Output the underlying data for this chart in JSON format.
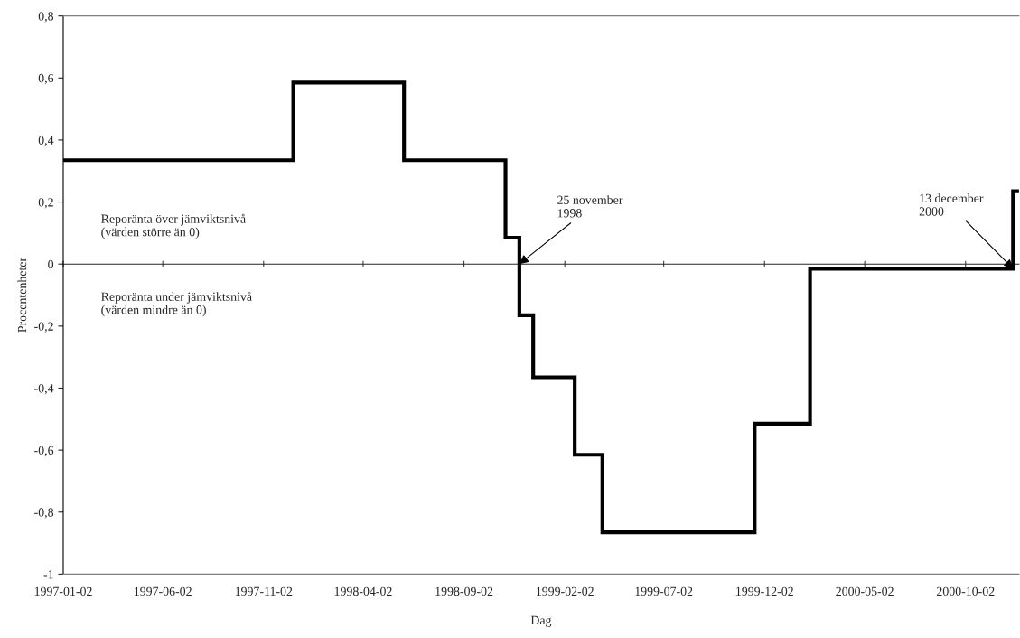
{
  "chart_data": {
    "type": "step",
    "xlabel": "Dag",
    "ylabel": "Procentenheter",
    "x": [
      "1997-01-02",
      "1997-12-17",
      "1998-06-03",
      "1998-11-04",
      "1998-11-25",
      "1998-12-16",
      "1999-02-17",
      "1999-03-31",
      "1999-11-17",
      "2000-02-09",
      "2000-12-13",
      "2000-12-22"
    ],
    "series": [
      {
        "color": "#000000",
        "values": [
          0.335,
          0.585,
          0.335,
          0.085,
          -0.165,
          -0.365,
          -0.615,
          -0.865,
          -0.515,
          -0.015,
          0.235,
          0.235
        ]
      }
    ],
    "xlim": [
      "1997-01-02",
      "2000-12-22"
    ],
    "xticks": [
      "1997-01-02",
      "1997-06-02",
      "1997-11-02",
      "1998-04-02",
      "1998-09-02",
      "1999-02-02",
      "1999-07-02",
      "1999-12-02",
      "2000-05-02",
      "2000-10-02"
    ],
    "ylim": [
      -1,
      0.8
    ],
    "yticks": [
      {
        "value": -1,
        "label": "-1"
      },
      {
        "value": -0.8,
        "label": "-0,8"
      },
      {
        "value": -0.6,
        "label": "-0,6"
      },
      {
        "value": -0.4,
        "label": "-0,4"
      },
      {
        "value": -0.2,
        "label": "-0,2"
      },
      {
        "value": 0,
        "label": "0"
      },
      {
        "value": 0.2,
        "label": "0,2"
      },
      {
        "value": 0.4,
        "label": "0,4"
      },
      {
        "value": 0.6,
        "label": "0,6"
      },
      {
        "value": 0.8,
        "label": "0,8"
      }
    ],
    "annotations": [
      {
        "text": "25 november\n1998",
        "x": "1998-11-25",
        "y": 0
      },
      {
        "text": "13 december\n2000",
        "x": "2000-12-13",
        "y": -0.015
      },
      "Reporänta över jämviktsnivå\n(värden större än 0)",
      "Reporänta under jämviktsnivå\n(värden mindre än 0)"
    ],
    "legend": false,
    "marker": "none",
    "line_style": "solid"
  }
}
